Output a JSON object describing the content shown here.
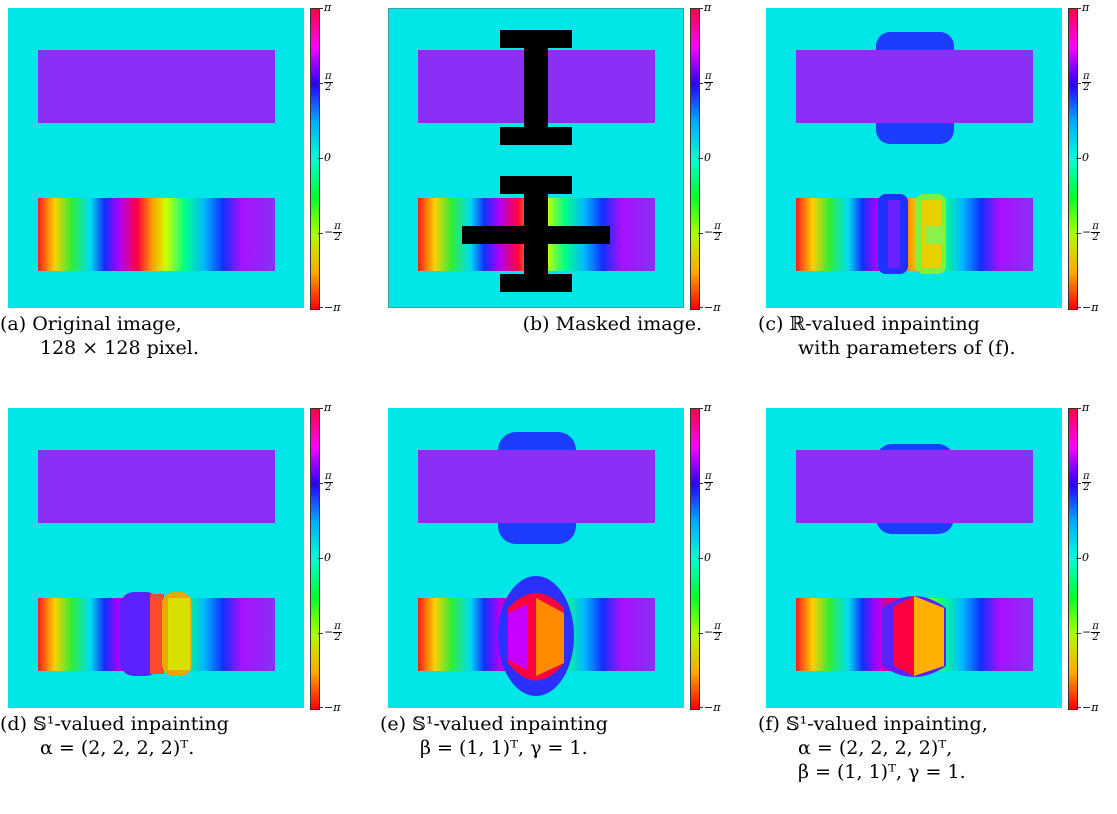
{
  "colorbar": {
    "top": "π",
    "half_pos_num": "π",
    "half_pos_den": "2",
    "zero": "0",
    "half_neg_prefix": "−",
    "half_neg_num": "π",
    "half_neg_den": "2",
    "bottom": "−π"
  },
  "panels": [
    {
      "id": "a",
      "caption_lines": [
        "(a) Original image,",
        "128 × 128 pixel."
      ]
    },
    {
      "id": "b",
      "caption_lines": [
        "(b) Masked image."
      ]
    },
    {
      "id": "c",
      "caption_lines": [
        "(c) ℝ-valued inpainting",
        "with parameters of (f)."
      ]
    },
    {
      "id": "d",
      "caption_lines": [
        "(d) 𝕊¹-valued inpainting",
        "α = (2, 2, 2, 2)ᵀ."
      ]
    },
    {
      "id": "e",
      "caption_lines": [
        "(e) 𝕊¹-valued inpainting",
        "β = (1, 1)ᵀ, γ = 1."
      ]
    },
    {
      "id": "f",
      "caption_lines": [
        "(f) 𝕊¹-valued inpainting,",
        "α = (2, 2, 2, 2)ᵀ,",
        "β = (1, 1)ᵀ, γ = 1."
      ]
    }
  ],
  "colors": {
    "background": "#00e6e6",
    "purple": "#8a2ff5",
    "mask": "#000000"
  }
}
